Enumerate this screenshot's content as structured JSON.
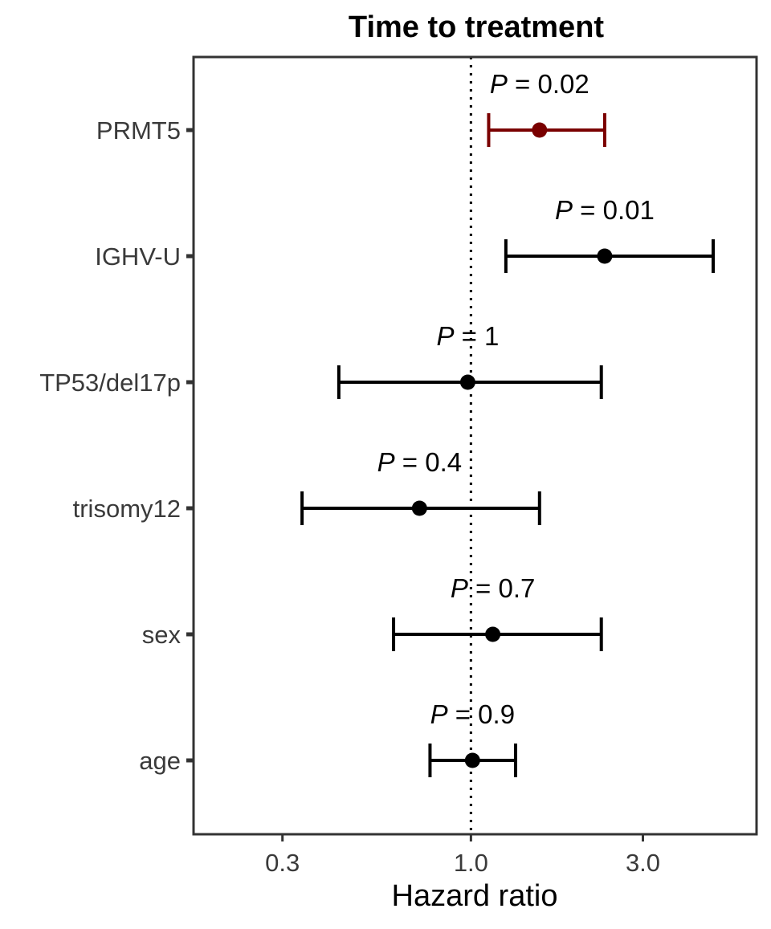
{
  "chart_data": {
    "type": "forest",
    "title": "Time to treatment",
    "xlabel": "Hazard ratio",
    "ylabel": "",
    "xscale": "log",
    "xlim": [
      0.17,
      6.2
    ],
    "xticks": [
      0.3,
      1.0,
      3.0
    ],
    "xtick_labels": [
      "0.3",
      "1.0",
      "3.0"
    ],
    "reference_line": 1.0,
    "grid": false,
    "colors": {
      "highlight": "#7a0000",
      "default": "#000000"
    },
    "rows": [
      {
        "label": "PRMT5",
        "estimate": 1.55,
        "lower": 1.12,
        "upper": 2.35,
        "p_label": "= 0.02",
        "highlight": true
      },
      {
        "label": "IGHV-U",
        "estimate": 2.35,
        "lower": 1.25,
        "upper": 4.7,
        "p_label": "= 0.01",
        "highlight": false
      },
      {
        "label": "TP53/del17p",
        "estimate": 0.98,
        "lower": 0.43,
        "upper": 2.3,
        "p_label": "= 1",
        "highlight": false
      },
      {
        "label": "trisomy12",
        "estimate": 0.72,
        "lower": 0.34,
        "upper": 1.55,
        "p_label": "= 0.4",
        "highlight": false
      },
      {
        "label": "sex",
        "estimate": 1.15,
        "lower": 0.61,
        "upper": 2.3,
        "p_label": "= 0.7",
        "highlight": false
      },
      {
        "label": "age",
        "estimate": 1.01,
        "lower": 0.77,
        "upper": 1.33,
        "p_label": "= 0.9",
        "highlight": false
      }
    ],
    "p_prefix": "P"
  }
}
